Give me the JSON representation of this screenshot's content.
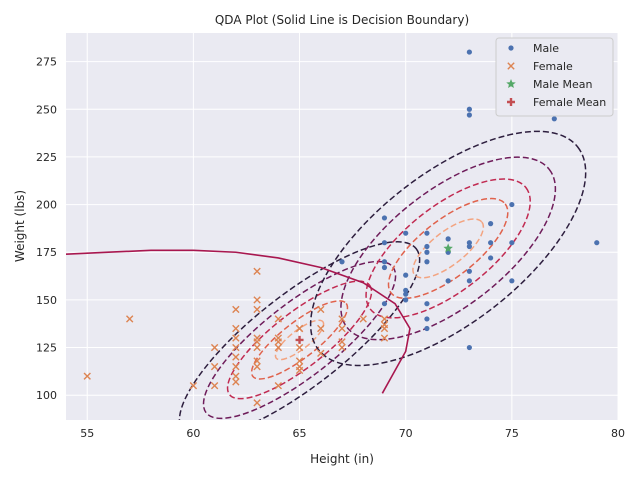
{
  "chart_data": {
    "type": "scatter",
    "title": "QDA Plot (Solid Line is Decision Boundary)",
    "xlabel": "Height (in)",
    "ylabel": "Weight (lbs)",
    "xlim": [
      54,
      80
    ],
    "ylim": [
      87,
      290
    ],
    "xticks": [
      55,
      60,
      65,
      70,
      75,
      80
    ],
    "yticks": [
      100,
      125,
      150,
      175,
      200,
      225,
      250,
      275
    ],
    "grid": true,
    "legend_position": "top-right",
    "colors": {
      "male": "#4c72b0",
      "female": "#dd8452",
      "male_mean": "#55a868",
      "female_mean": "#c44e52",
      "boundary": "#a8174f",
      "plot_bg": "#eaeaf2"
    },
    "series": [
      {
        "name": "Male",
        "marker": "dot",
        "points": [
          [
            73,
            280
          ],
          [
            73,
            250
          ],
          [
            73,
            247
          ],
          [
            77,
            245
          ],
          [
            75,
            200
          ],
          [
            69,
            193
          ],
          [
            74,
            190
          ],
          [
            70,
            185
          ],
          [
            71,
            185
          ],
          [
            72,
            182
          ],
          [
            73,
            180
          ],
          [
            74,
            180
          ],
          [
            75,
            180
          ],
          [
            79,
            180
          ],
          [
            69,
            180
          ],
          [
            71,
            178
          ],
          [
            73,
            178
          ],
          [
            71,
            175
          ],
          [
            72,
            175
          ],
          [
            74,
            172
          ],
          [
            69,
            170
          ],
          [
            71,
            170
          ],
          [
            67,
            170
          ],
          [
            69,
            167
          ],
          [
            73,
            165
          ],
          [
            70,
            163
          ],
          [
            72,
            160
          ],
          [
            73,
            160
          ],
          [
            75,
            160
          ],
          [
            70,
            155
          ],
          [
            70,
            153
          ],
          [
            70,
            150
          ],
          [
            71,
            148
          ],
          [
            69,
            148
          ],
          [
            71,
            140
          ],
          [
            71,
            135
          ],
          [
            73,
            125
          ]
        ]
      },
      {
        "name": "Female",
        "marker": "x",
        "points": [
          [
            63,
            165
          ],
          [
            57,
            140
          ],
          [
            55,
            110
          ],
          [
            62,
            145
          ],
          [
            63,
            150
          ],
          [
            63,
            145
          ],
          [
            64,
            140
          ],
          [
            66,
            145
          ],
          [
            67,
            140
          ],
          [
            68,
            140
          ],
          [
            69,
            140
          ],
          [
            69,
            137
          ],
          [
            65,
            135
          ],
          [
            66,
            135
          ],
          [
            67,
            135
          ],
          [
            69,
            135
          ],
          [
            62,
            130
          ],
          [
            63,
            130
          ],
          [
            64,
            130
          ],
          [
            63,
            128
          ],
          [
            64,
            128
          ],
          [
            67,
            128
          ],
          [
            62,
            125
          ],
          [
            61,
            125
          ],
          [
            63,
            125
          ],
          [
            64,
            125
          ],
          [
            65,
            125
          ],
          [
            66,
            122
          ],
          [
            62,
            120
          ],
          [
            63,
            118
          ],
          [
            65,
            118
          ],
          [
            67,
            125
          ],
          [
            69,
            130
          ],
          [
            61,
            115
          ],
          [
            62,
            115
          ],
          [
            63,
            115
          ],
          [
            65,
            113
          ],
          [
            65,
            115
          ],
          [
            62,
            110
          ],
          [
            62,
            107
          ],
          [
            60,
            105
          ],
          [
            61,
            105
          ],
          [
            64,
            105
          ],
          [
            63,
            96
          ],
          [
            65,
            135
          ],
          [
            62,
            135
          ]
        ]
      },
      {
        "name": "Male Mean",
        "marker": "star",
        "points": [
          [
            72,
            177
          ]
        ]
      },
      {
        "name": "Female Mean",
        "marker": "plus",
        "points": [
          [
            65,
            129
          ]
        ]
      }
    ],
    "contours": {
      "male": {
        "center": [
          72,
          177
        ],
        "levels": [
          {
            "rx": 1.3,
            "ry": 14,
            "color": "#f3a481"
          },
          {
            "rx": 2.2,
            "ry": 24,
            "color": "#e0624c"
          },
          {
            "rx": 3.0,
            "ry": 36,
            "color": "#c12a51"
          },
          {
            "rx": 3.9,
            "ry": 49,
            "color": "#6e1c5a"
          },
          {
            "rx": 5.0,
            "ry": 63,
            "color": "#2d1e3e"
          }
        ]
      },
      "female": {
        "center": [
          65,
          129
        ],
        "levels": [
          {
            "rx": 0.9,
            "ry": 8,
            "color": "#f3a481"
          },
          {
            "rx": 1.8,
            "ry": 15,
            "color": "#e0624c"
          },
          {
            "rx": 2.7,
            "ry": 23,
            "color": "#c12a51"
          },
          {
            "rx": 3.6,
            "ry": 31,
            "color": "#6e1c5a"
          },
          {
            "rx": 4.5,
            "ry": 39,
            "color": "#2d1e3e"
          }
        ]
      }
    },
    "decision_boundary": [
      [
        54,
        174
      ],
      [
        56,
        175
      ],
      [
        58,
        176
      ],
      [
        60,
        176
      ],
      [
        62,
        175
      ],
      [
        64,
        172
      ],
      [
        66,
        167
      ],
      [
        68,
        159
      ],
      [
        69.5,
        148
      ],
      [
        70.2,
        135
      ],
      [
        70,
        123
      ],
      [
        69.4,
        111
      ],
      [
        68.9,
        101
      ]
    ]
  }
}
